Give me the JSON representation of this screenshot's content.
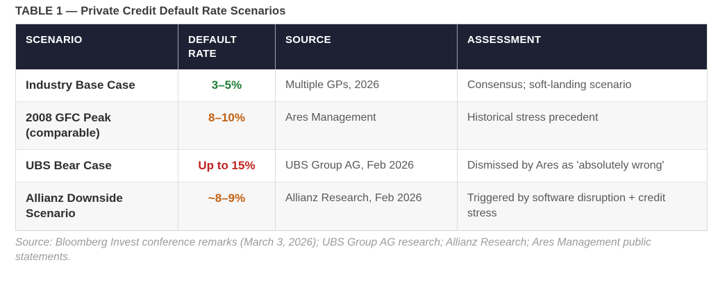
{
  "title": "TABLE 1 — Private Credit Default Rate Scenarios",
  "table": {
    "headers": [
      "SCENARIO",
      "DEFAULT RATE",
      "SOURCE",
      "ASSESSMENT"
    ],
    "rows": [
      {
        "scenario": "Industry Base Case",
        "rate": "3–5%",
        "rate_color": "#1e7e34",
        "source": "Multiple GPs, 2026",
        "assessment": "Consensus; soft-landing scenario"
      },
      {
        "scenario": "2008 GFC Peak (comparable)",
        "rate": "8–10%",
        "rate_color": "#c2610f",
        "source": "Ares Management",
        "assessment": "Historical stress precedent"
      },
      {
        "scenario": "UBS Bear Case",
        "rate": "Up to 15%",
        "rate_color": "#c0211f",
        "source": "UBS Group AG, Feb 2026",
        "assessment": "Dismissed by Ares as 'absolutely wrong'"
      },
      {
        "scenario": "Allianz Downside Scenario",
        "rate": "~8–9%",
        "rate_color": "#c2610f",
        "source": "Allianz Research, Feb 2026",
        "assessment": "Triggered by software disruption + credit stress"
      }
    ]
  },
  "footer": {
    "source_note": "Source: Bloomberg Invest conference remarks (March 3, 2026); UBS Group AG research; Allianz Research; Ares Management public statements."
  },
  "colors": {
    "header_bg": "#1d2133",
    "row_alt_bg": "#f7f7f8",
    "rate_green": "#1e7e34",
    "rate_orange": "#c2610f",
    "rate_red": "#c0211f"
  }
}
